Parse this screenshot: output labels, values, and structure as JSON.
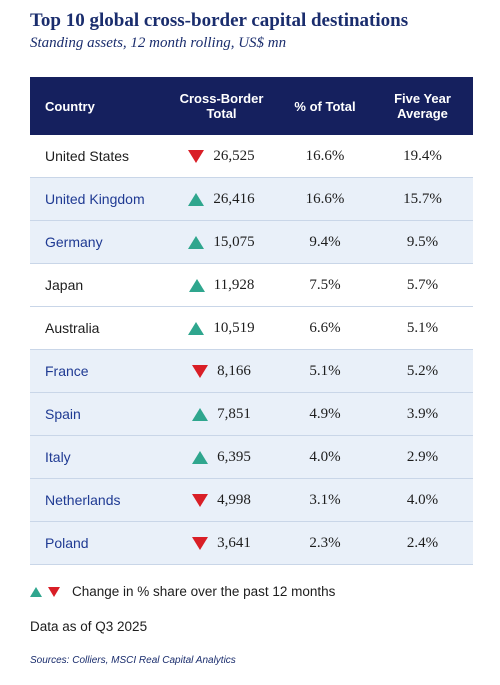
{
  "title": "Top 10 global cross-border capital destinations",
  "subtitle": "Standing assets, 12 month rolling, US$ mn",
  "chart_data": {
    "type": "table",
    "columns": [
      "Country",
      "Cross-Border Total",
      "% of Total",
      "Five Year Average"
    ],
    "rows": [
      {
        "country": "United States",
        "total": "26,525",
        "pct": "16.6%",
        "avg": "19.4%",
        "change": "down"
      },
      {
        "country": "United Kingdom",
        "total": "26,416",
        "pct": "16.6%",
        "avg": "15.7%",
        "change": "up"
      },
      {
        "country": "Germany",
        "total": "15,075",
        "pct": "9.4%",
        "avg": "9.5%",
        "change": "up"
      },
      {
        "country": "Japan",
        "total": "11,928",
        "pct": "7.5%",
        "avg": "5.7%",
        "change": "up"
      },
      {
        "country": "Australia",
        "total": "10,519",
        "pct": "6.6%",
        "avg": "5.1%",
        "change": "up"
      },
      {
        "country": "France",
        "total": "8,166",
        "pct": "5.1%",
        "avg": "5.2%",
        "change": "down"
      },
      {
        "country": "Spain",
        "total": "7,851",
        "pct": "4.9%",
        "avg": "3.9%",
        "change": "up"
      },
      {
        "country": "Italy",
        "total": "6,395",
        "pct": "4.0%",
        "avg": "2.9%",
        "change": "up"
      },
      {
        "country": "Netherlands",
        "total": "4,998",
        "pct": "3.1%",
        "avg": "4.0%",
        "change": "down"
      },
      {
        "country": "Poland",
        "total": "3,641",
        "pct": "2.3%",
        "avg": "2.4%",
        "change": "down"
      }
    ]
  },
  "header": {
    "country": "Country",
    "total": "Cross-Border Total",
    "pct": "% of Total",
    "avg": "Five Year Average"
  },
  "legend": {
    "text": "Change in % share over the past 12 months"
  },
  "as_of": "Data as of Q3 2025",
  "sources": "Sources: Colliers, MSCI Real Capital Analytics",
  "colors": {
    "header_bg": "#15205e",
    "title": "#1a2d6d",
    "up": "#2fa68e",
    "down": "#d91e26",
    "alt_row": "#e9f0f9"
  }
}
